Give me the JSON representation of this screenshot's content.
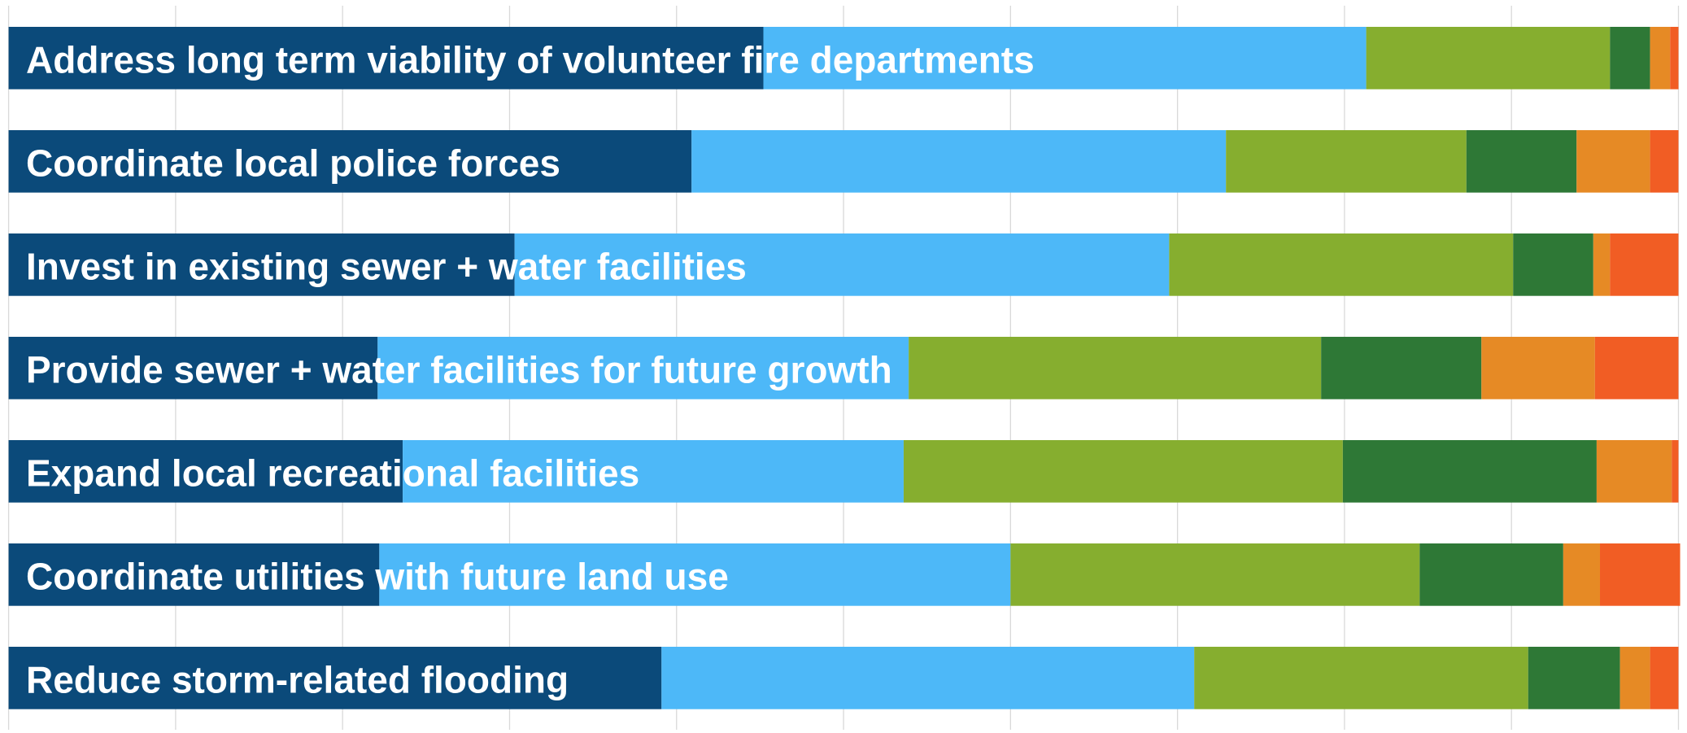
{
  "chart_data": {
    "type": "stacked-bar-horizontal",
    "categories": [
      "Address long term viability of volunteer fire departments",
      "Coordinate local police forces",
      "Invest in existing sewer + water facilities",
      "Provide sewer + water facilities for future growth",
      "Expand local recreational facilities",
      "Coordinate utilities with future land use",
      "Reduce storm-related flooding"
    ],
    "series": [
      {
        "color": "#0b4a7a",
        "values": [
          45.2,
          40.9,
          30.3,
          22.1,
          23.6,
          22.2,
          39.1
        ]
      },
      {
        "color": "#4db8f8",
        "values": [
          36.1,
          32.0,
          39.2,
          31.8,
          30.0,
          37.8,
          31.9
        ]
      },
      {
        "color": "#86ae2f",
        "values": [
          14.6,
          14.4,
          20.6,
          24.7,
          26.3,
          24.5,
          20.0
        ]
      },
      {
        "color": "#2e7836",
        "values": [
          2.4,
          6.6,
          4.8,
          9.6,
          15.2,
          8.6,
          5.5
        ]
      },
      {
        "color": "#e68a25",
        "values": [
          1.2,
          4.4,
          1.0,
          6.8,
          4.5,
          2.2,
          1.8
        ]
      },
      {
        "color": "#f15d24",
        "values": [
          0.5,
          1.7,
          4.1,
          5.0,
          0.4,
          4.8,
          1.7
        ]
      }
    ],
    "xlim": [
      0,
      100
    ],
    "xticks": [
      0,
      10,
      20,
      30,
      40,
      50,
      60,
      70,
      80,
      90,
      100
    ],
    "grid": true
  }
}
